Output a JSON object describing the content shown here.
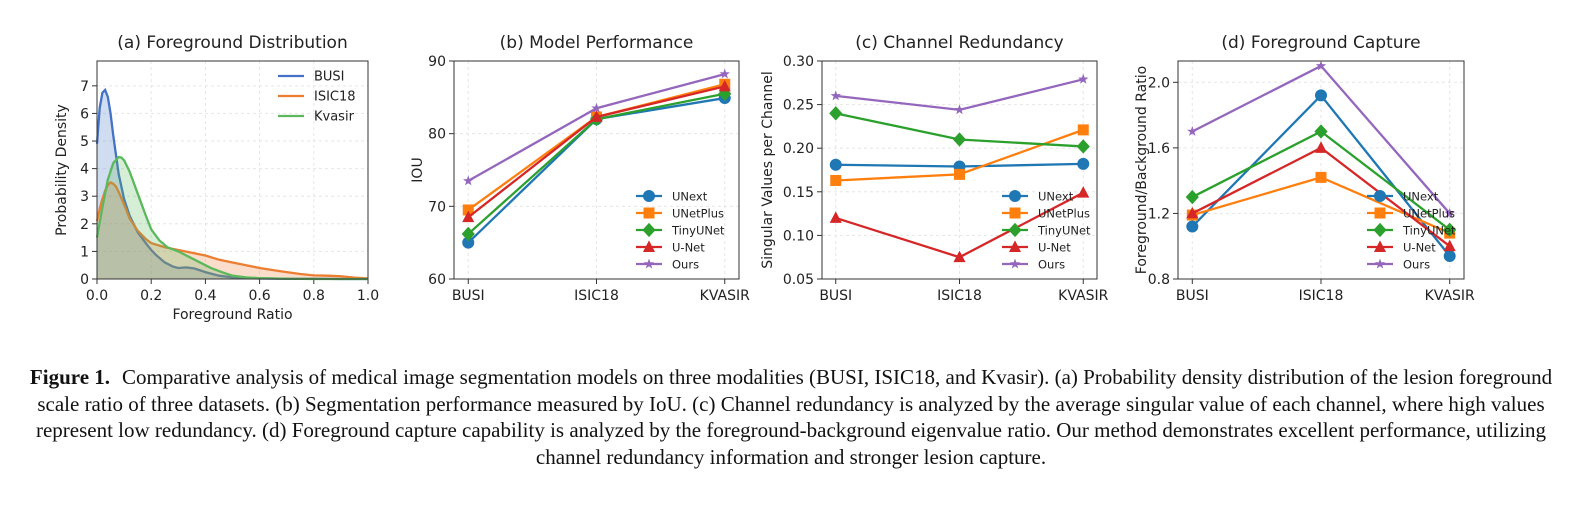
{
  "chart_data": [
    {
      "type": "area",
      "title": "(a) Foreground Distribution",
      "xlabel": "Foreground Ratio",
      "ylabel": "Probability Density",
      "xlim": [
        0,
        1
      ],
      "ylim": [
        0,
        7.9
      ],
      "xticks": [
        "0.0",
        "0.2",
        "0.4",
        "0.6",
        "0.8",
        "1.0"
      ],
      "xtick_values": [
        0,
        0.2,
        0.4,
        0.6,
        0.8,
        1.0
      ],
      "yticks": [
        "0",
        "1",
        "2",
        "3",
        "4",
        "5",
        "6",
        "7"
      ],
      "ytick_values": [
        0,
        1,
        2,
        3,
        4,
        5,
        6,
        7
      ],
      "grid": true,
      "legend_position": "top-right",
      "series": [
        {
          "name": "BUSI",
          "color": "#4472c4",
          "x": [
            0,
            0.01,
            0.02,
            0.03,
            0.04,
            0.05,
            0.06,
            0.08,
            0.1,
            0.12,
            0.15,
            0.18,
            0.2,
            0.22,
            0.25,
            0.28,
            0.3,
            0.33,
            0.36,
            0.4,
            0.45,
            0.5,
            0.55,
            0.6,
            0.7,
            0.8,
            0.9,
            1.0
          ],
          "y": [
            4.9,
            6.2,
            6.75,
            6.85,
            6.6,
            6.0,
            5.2,
            3.8,
            2.9,
            2.3,
            1.7,
            1.3,
            1.05,
            0.85,
            0.6,
            0.45,
            0.4,
            0.42,
            0.38,
            0.25,
            0.12,
            0.06,
            0.03,
            0.02,
            0.01,
            0.01,
            0.0,
            0.0
          ]
        },
        {
          "name": "ISIC18",
          "color": "#ed7d31",
          "x": [
            0,
            0.01,
            0.02,
            0.03,
            0.04,
            0.05,
            0.06,
            0.07,
            0.08,
            0.1,
            0.12,
            0.15,
            0.18,
            0.2,
            0.25,
            0.3,
            0.35,
            0.4,
            0.45,
            0.5,
            0.55,
            0.6,
            0.65,
            0.7,
            0.75,
            0.8,
            0.85,
            0.9,
            0.95,
            1.0
          ],
          "y": [
            2.1,
            2.55,
            2.9,
            3.2,
            3.4,
            3.5,
            3.45,
            3.35,
            3.15,
            2.7,
            2.2,
            1.75,
            1.45,
            1.3,
            1.15,
            1.05,
            0.95,
            0.85,
            0.7,
            0.6,
            0.5,
            0.4,
            0.32,
            0.25,
            0.18,
            0.13,
            0.12,
            0.1,
            0.05,
            0.02
          ]
        },
        {
          "name": "Kvasir",
          "color": "#5cb85c",
          "x": [
            0,
            0.02,
            0.04,
            0.06,
            0.08,
            0.09,
            0.1,
            0.12,
            0.15,
            0.18,
            0.2,
            0.23,
            0.26,
            0.3,
            0.34,
            0.38,
            0.42,
            0.46,
            0.5,
            0.55,
            0.6,
            0.7,
            0.8,
            1.0
          ],
          "y": [
            1.5,
            2.6,
            3.6,
            4.2,
            4.42,
            4.4,
            4.3,
            3.9,
            3.1,
            2.3,
            1.8,
            1.4,
            1.15,
            1.0,
            0.8,
            0.6,
            0.4,
            0.25,
            0.12,
            0.06,
            0.03,
            0.01,
            0.0,
            0.0
          ]
        }
      ]
    },
    {
      "type": "line",
      "title": "(b) Model Performance",
      "xlabel": "",
      "ylabel": "IOU",
      "categories": [
        "BUSI",
        "ISIC18",
        "KVASIR"
      ],
      "ylim": [
        60,
        90
      ],
      "yticks": [
        "60",
        "70",
        "80",
        "90"
      ],
      "ytick_values": [
        60,
        70,
        80,
        90
      ],
      "grid": true,
      "legend_position": "lower-right",
      "series": [
        {
          "name": "UNext",
          "color": "#1f77b4",
          "marker": "circle",
          "values": [
            65.0,
            82.0,
            84.9
          ]
        },
        {
          "name": "UNetPlus",
          "color": "#ff7f0e",
          "marker": "square",
          "values": [
            69.5,
            82.3,
            86.8
          ]
        },
        {
          "name": "TinyUNet",
          "color": "#2ca02c",
          "marker": "diamond",
          "values": [
            66.2,
            82.0,
            85.5
          ]
        },
        {
          "name": "U-Net",
          "color": "#d62728",
          "marker": "triangle",
          "values": [
            68.5,
            82.3,
            86.5
          ]
        },
        {
          "name": "Ours",
          "color": "#9467bd",
          "marker": "star",
          "values": [
            73.5,
            83.5,
            88.2
          ]
        }
      ]
    },
    {
      "type": "line",
      "title": "(c) Channel Redundancy",
      "xlabel": "",
      "ylabel": "Singular Values per Channel",
      "categories": [
        "BUSI",
        "ISIC18",
        "KVASIR"
      ],
      "ylim": [
        0.05,
        0.3
      ],
      "yticks": [
        "0.05",
        "0.10",
        "0.15",
        "0.20",
        "0.25",
        "0.30"
      ],
      "ytick_values": [
        0.05,
        0.1,
        0.15,
        0.2,
        0.25,
        0.3
      ],
      "grid": true,
      "legend_position": "lower-right",
      "series": [
        {
          "name": "UNext",
          "color": "#1f77b4",
          "marker": "circle",
          "values": [
            0.181,
            0.179,
            0.182
          ]
        },
        {
          "name": "UNetPlus",
          "color": "#ff7f0e",
          "marker": "square",
          "values": [
            0.163,
            0.17,
            0.221
          ]
        },
        {
          "name": "TinyUNet",
          "color": "#2ca02c",
          "marker": "diamond",
          "values": [
            0.24,
            0.21,
            0.202
          ]
        },
        {
          "name": "U-Net",
          "color": "#d62728",
          "marker": "triangle",
          "values": [
            0.12,
            0.075,
            0.149
          ]
        },
        {
          "name": "Ours",
          "color": "#9467bd",
          "marker": "star",
          "values": [
            0.26,
            0.244,
            0.279
          ]
        }
      ]
    },
    {
      "type": "line",
      "title": "(d) Foreground Capture",
      "xlabel": "",
      "ylabel": "Foreground/Background Ratio",
      "categories": [
        "BUSI",
        "ISIC18",
        "KVASIR"
      ],
      "ylim": [
        0.8,
        2.13
      ],
      "yticks": [
        "0.8",
        "1.2",
        "1.6",
        "2.0"
      ],
      "ytick_values": [
        0.8,
        1.2,
        1.6,
        2.0
      ],
      "grid": true,
      "legend_position": "lower-right",
      "series": [
        {
          "name": "UNext",
          "color": "#1f77b4",
          "marker": "circle",
          "values": [
            1.12,
            1.92,
            0.94
          ]
        },
        {
          "name": "UNetPlus",
          "color": "#ff7f0e",
          "marker": "square",
          "values": [
            1.19,
            1.42,
            1.08
          ]
        },
        {
          "name": "TinyUNet",
          "color": "#2ca02c",
          "marker": "diamond",
          "values": [
            1.3,
            1.7,
            1.1
          ]
        },
        {
          "name": "U-Net",
          "color": "#d62728",
          "marker": "triangle",
          "values": [
            1.2,
            1.6,
            1.0
          ]
        },
        {
          "name": "Ours",
          "color": "#9467bd",
          "marker": "star",
          "values": [
            1.7,
            2.1,
            1.2
          ]
        }
      ]
    }
  ],
  "caption": {
    "label": "Figure 1.",
    "text": "Comparative analysis of medical image segmentation models on three modalities (BUSI, ISIC18, and Kvasir). (a) Probability density distribution of the lesion foreground scale ratio of three datasets. (b) Segmentation performance measured by IoU. (c) Channel redundancy is analyzed by the average singular value of each channel, where high values represent low redundancy. (d) Foreground capture capability is analyzed by the foreground-background eigenvalue ratio. Our method demonstrates excellent performance, utilizing channel redundancy information and stronger lesion capture."
  }
}
